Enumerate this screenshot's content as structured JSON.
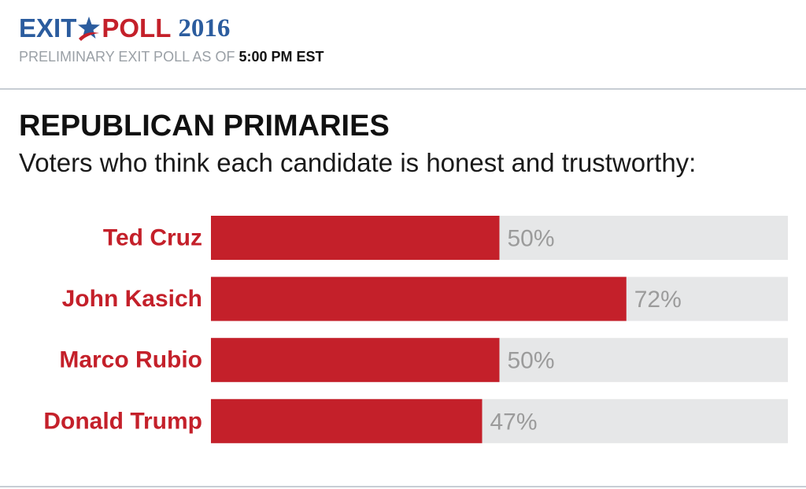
{
  "header": {
    "logo_word_1": "EXIT",
    "logo_word_2": "POLL",
    "logo_year": "2016",
    "asof_prefix": "PRELIMINARY EXIT POLL AS OF ",
    "asof_time": "5:00 PM EST"
  },
  "colors": {
    "brand_blue": "#2b5c9e",
    "brand_red": "#c4202a",
    "bar_fill": "#c4202a",
    "bar_track": "#e6e7e8",
    "value_text": "#9b9b9b"
  },
  "chart_data": {
    "type": "bar",
    "orientation": "horizontal",
    "title": "REPUBLICAN PRIMARIES",
    "subtitle": "Voters who think each candidate is honest and trustworthy:",
    "categories": [
      "Ted Cruz",
      "John Kasich",
      "Marco Rubio",
      "Donald Trump"
    ],
    "values": [
      50,
      72,
      50,
      47
    ],
    "value_labels": [
      "50%",
      "72%",
      "50%",
      "47%"
    ],
    "xlim": [
      0,
      100
    ],
    "xlabel": "",
    "ylabel": "",
    "grid": false,
    "legend": "none"
  }
}
